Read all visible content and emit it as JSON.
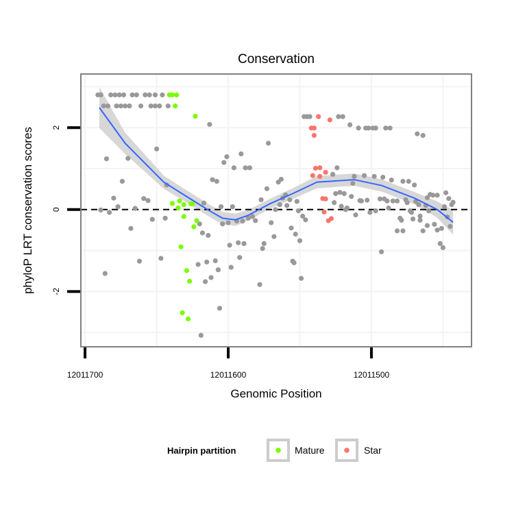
{
  "chart_data": {
    "type": "scatter",
    "title": "Conservation",
    "xlabel": "Genomic Position",
    "ylabel": "phyloP LRT conservation scores",
    "x_reversed": true,
    "xlim": [
      12011702.9,
      12011430.1
    ],
    "ylim": [
      -3.35,
      3.31
    ],
    "x_ticks": [
      12011700,
      12011600,
      12011500
    ],
    "x_tick_labels": [
      "12011700",
      "12011600",
      "12011500"
    ],
    "x_minor_grid": [
      12011650,
      12011550,
      12011450
    ],
    "y_ticks": [
      2,
      0,
      -2
    ],
    "y_tick_labels": [
      "2",
      "0",
      "-2"
    ],
    "y_minor_grid": [
      3,
      1,
      -1,
      -3
    ],
    "grid": true,
    "reference_line": {
      "y": 0,
      "style": "dashed"
    },
    "colors": {
      "other": "#999999",
      "Mature": "#7cfc00",
      "Star": "#f8766d",
      "smooth": "#3366ff",
      "ribbon": "#d3d3d3"
    },
    "legend": {
      "title": "Hairpin partition",
      "position": "bottom",
      "entries": [
        "Mature",
        "Star"
      ]
    },
    "series": [
      {
        "name": "Other",
        "points": [
          [
            12011691,
            2.8
          ],
          [
            12011689,
            2.8
          ],
          [
            12011682,
            2.8
          ],
          [
            12011679,
            2.8
          ],
          [
            12011676,
            2.8
          ],
          [
            12011673,
            2.8
          ],
          [
            12011667,
            2.8
          ],
          [
            12011664,
            2.8
          ],
          [
            12011658,
            2.8
          ],
          [
            12011655,
            2.8
          ],
          [
            12011651,
            2.8
          ],
          [
            12011646,
            2.8
          ],
          [
            12011687,
            2.53
          ],
          [
            12011684,
            2.53
          ],
          [
            12011678,
            2.53
          ],
          [
            12011675,
            2.53
          ],
          [
            12011672,
            2.53
          ],
          [
            12011669,
            2.53
          ],
          [
            12011661,
            2.53
          ],
          [
            12011654,
            2.53
          ],
          [
            12011651,
            2.53
          ],
          [
            12011648,
            2.53
          ],
          [
            12011642,
            2.53
          ],
          [
            12011685,
            1.24
          ],
          [
            12011686,
            -1.56
          ],
          [
            12011689,
            -0.01
          ],
          [
            12011683,
            -0.07
          ],
          [
            12011680,
            0.28
          ],
          [
            12011677,
            0.07
          ],
          [
            12011674,
            0.69
          ],
          [
            12011670,
            1.25
          ],
          [
            12011668,
            -0.46
          ],
          [
            12011665,
            0.03
          ],
          [
            12011662,
            -1.26
          ],
          [
            12011659,
            0.27
          ],
          [
            12011656,
            0.22
          ],
          [
            12011653,
            -0.24
          ],
          [
            12011650,
            1.48
          ],
          [
            12011647,
            -1.19
          ],
          [
            12011644,
            -0.21
          ],
          [
            12011643,
            0.6
          ],
          [
            12011620,
            -0.35
          ],
          [
            12011618,
            -0.57
          ],
          [
            12011617,
            0.16
          ],
          [
            12011614,
            -0.63
          ],
          [
            12011613,
            2.08
          ],
          [
            12011611,
            0.73
          ],
          [
            12011608,
            0.69
          ],
          [
            12011621,
            -1.34
          ],
          [
            12011615,
            -1.28
          ],
          [
            12011616,
            -1.76
          ],
          [
            12011612,
            -1.66
          ],
          [
            12011609,
            -1.25
          ],
          [
            12011607,
            -1.47
          ],
          [
            12011606,
            -2.41
          ],
          [
            12011619,
            -3.07
          ],
          [
            12011605,
            0.07
          ],
          [
            12011604,
            -0.35
          ],
          [
            12011603,
            1.15
          ],
          [
            12011601,
            1.29
          ],
          [
            12011600,
            -0.32
          ],
          [
            12011599,
            -0.87
          ],
          [
            12011598,
            -1.41
          ],
          [
            12011597,
            0.07
          ],
          [
            12011596,
            1.02
          ],
          [
            12011594,
            -0.28
          ],
          [
            12011593,
            -0.81
          ],
          [
            12011592,
            -1.17
          ],
          [
            12011591,
            1.36
          ],
          [
            12011590,
            -0.28
          ],
          [
            12011589,
            -0.83
          ],
          [
            12011588,
            1.02
          ],
          [
            12011585,
            1.02
          ],
          [
            12011586,
            -0.21
          ],
          [
            12011583,
            -0.17
          ],
          [
            12011581,
            -0.27
          ],
          [
            12011578,
            -1.83
          ],
          [
            12011577,
            0.24
          ],
          [
            12011576,
            -0.95
          ],
          [
            12011575,
            -0.83
          ],
          [
            12011573,
            0.51
          ],
          [
            12011572,
            1.62
          ],
          [
            12011570,
            -0.32
          ],
          [
            12011568,
            -0.66
          ],
          [
            12011567,
            0.0
          ],
          [
            12011565,
            0.67
          ],
          [
            12011563,
            0.74
          ],
          [
            12011564,
            0.12
          ],
          [
            12011562,
            0.28
          ],
          [
            12011560,
            0.36
          ],
          [
            12011559,
            0.1
          ],
          [
            12011557,
            0.24
          ],
          [
            12011556,
            -0.45
          ],
          [
            12011555,
            -1.26
          ],
          [
            12011554,
            -1.3
          ],
          [
            12011553,
            -0.6
          ],
          [
            12011552,
            0.2
          ],
          [
            12011551,
            -0.03
          ],
          [
            12011550,
            -0.76
          ],
          [
            12011549,
            -1.68
          ],
          [
            12011548,
            -0.16
          ],
          [
            12011546,
            -0.25
          ],
          [
            12011547,
            2.27
          ],
          [
            12011545,
            2.27
          ],
          [
            12011543,
            2.27
          ],
          [
            12011527,
            0.86
          ],
          [
            12011526,
            0.17
          ],
          [
            12011524,
            1.02
          ],
          [
            12011525,
            0.39
          ],
          [
            12011522,
            0.42
          ],
          [
            12011523,
            2.27
          ],
          [
            12011520,
            2.27
          ],
          [
            12011521,
            0.08
          ],
          [
            12011519,
            0.39
          ],
          [
            12011518,
            0.0
          ],
          [
            12011517,
            0.04
          ],
          [
            12011515,
            2.07
          ],
          [
            12011514,
            0.32
          ],
          [
            12011513,
            0.64
          ],
          [
            12011512,
            0.81
          ],
          [
            12011511,
            -0.13
          ],
          [
            12011509,
            1.99
          ],
          [
            12011508,
            0.22
          ],
          [
            12011507,
            0.21
          ],
          [
            12011505,
            0.83
          ],
          [
            12011504,
            1.99
          ],
          [
            12011502,
            1.99
          ],
          [
            12011499,
            1.99
          ],
          [
            12011497,
            1.99
          ],
          [
            12011503,
            0.23
          ],
          [
            12011501,
            -0.07
          ],
          [
            12011498,
            0.81
          ],
          [
            12011497,
            -0.03
          ],
          [
            12011494,
            0.26
          ],
          [
            12011493,
            -1.03
          ],
          [
            12011492,
            0.79
          ],
          [
            12011491,
            0.26
          ],
          [
            12011490,
            1.99
          ],
          [
            12011487,
            1.99
          ],
          [
            12011489,
            0.21
          ],
          [
            12011488,
            0.04
          ],
          [
            12011486,
            0.72
          ],
          [
            12011485,
            0.21
          ],
          [
            12011482,
            0.21
          ],
          [
            12011482,
            -0.52
          ],
          [
            12011480,
            -0.21
          ],
          [
            12011479,
            -0.26
          ],
          [
            12011478,
            -0.52
          ],
          [
            12011478,
            0.69
          ],
          [
            12011476,
            0.24
          ],
          [
            12011475,
            0.17
          ],
          [
            12011474,
            0.69
          ],
          [
            12011473,
            -0.03
          ],
          [
            12011472,
            -0.07
          ],
          [
            12011471,
            -0.23
          ],
          [
            12011470,
            0.6
          ],
          [
            12011469,
            0.2
          ],
          [
            12011468,
            1.85
          ],
          [
            12011467,
            0.12
          ],
          [
            12011466,
            -0.16
          ],
          [
            12011466,
            -0.26
          ],
          [
            12011464,
            -0.52
          ],
          [
            12011464,
            1.81
          ],
          [
            12011462,
            0.1
          ],
          [
            12011461,
            -0.39
          ],
          [
            12011461,
            0.29
          ],
          [
            12011460,
            -0.03
          ],
          [
            12011459,
            0.37
          ],
          [
            12011457,
            0.35
          ],
          [
            12011456,
            -0.36
          ],
          [
            12011454,
            -0.5
          ],
          [
            12011454,
            0.35
          ],
          [
            12011452,
            -0.83
          ],
          [
            12011451,
            -0.46
          ],
          [
            12011450,
            -0.93
          ],
          [
            12011449,
            0.07
          ],
          [
            12011448,
            0.41
          ],
          [
            12011447,
            -0.18
          ],
          [
            12011446,
            0.27
          ],
          [
            12011445,
            -0.41
          ],
          [
            12011444,
            0.12
          ],
          [
            12011443,
            0.18
          ]
        ]
      },
      {
        "name": "Mature",
        "points": [
          [
            12011641,
            2.8
          ],
          [
            12011639,
            2.8
          ],
          [
            12011636,
            2.8
          ],
          [
            12011637,
            2.53
          ],
          [
            12011623,
            2.28
          ],
          [
            12011639,
            0.15
          ],
          [
            12011635,
            0.04
          ],
          [
            12011634,
            0.21
          ],
          [
            12011631,
            0.12
          ],
          [
            12011631,
            -0.17
          ],
          [
            12011626,
            0.14
          ],
          [
            12011625,
            0.14
          ],
          [
            12011622,
            -0.27
          ],
          [
            12011624,
            -0.42
          ],
          [
            12011633,
            -0.91
          ],
          [
            12011629,
            -1.49
          ],
          [
            12011627,
            -1.75
          ],
          [
            12011632,
            -2.52
          ],
          [
            12011628,
            -2.67
          ]
        ]
      },
      {
        "name": "Star",
        "points": [
          [
            12011537,
            2.27
          ],
          [
            12011529,
            2.19
          ],
          [
            12011542,
            1.99
          ],
          [
            12011540,
            1.99
          ],
          [
            12011540,
            1.81
          ],
          [
            12011539,
            1.01
          ],
          [
            12011536,
            1.02
          ],
          [
            12011541,
            0.83
          ],
          [
            12011536,
            0.81
          ],
          [
            12011532,
            0.91
          ],
          [
            12011534,
            0.27
          ],
          [
            12011532,
            0.26
          ],
          [
            12011533,
            -0.06
          ],
          [
            12011530,
            -0.27
          ],
          [
            12011528,
            -0.22
          ]
        ]
      }
    ],
    "smooth": {
      "method": "loess",
      "x": [
        12011690,
        12011672,
        12011645,
        12011630,
        12011613,
        12011604,
        12011595,
        12011586,
        12011571,
        12011555,
        12011538,
        12011512,
        12011493,
        12011470,
        12011454,
        12011443
      ],
      "y": [
        2.49,
        1.62,
        0.67,
        0.34,
        -0.03,
        -0.21,
        -0.25,
        -0.14,
        0.14,
        0.39,
        0.67,
        0.73,
        0.59,
        0.28,
        0.0,
        -0.31
      ],
      "se": [
        0.5,
        0.26,
        0.16,
        0.15,
        0.15,
        0.15,
        0.15,
        0.13,
        0.12,
        0.13,
        0.15,
        0.15,
        0.15,
        0.15,
        0.2,
        0.3
      ]
    }
  }
}
